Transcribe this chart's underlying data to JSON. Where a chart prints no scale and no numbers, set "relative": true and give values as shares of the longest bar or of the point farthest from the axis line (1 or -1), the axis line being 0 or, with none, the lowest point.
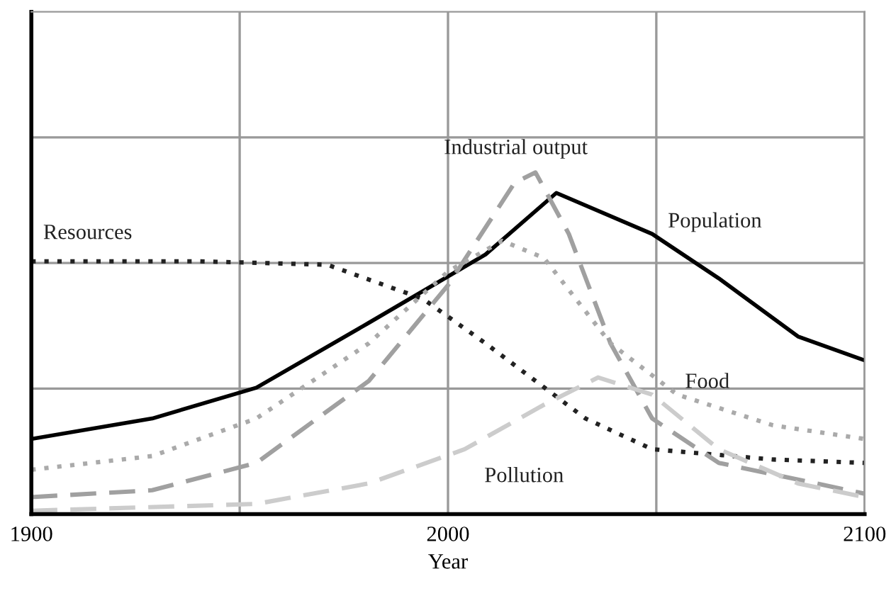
{
  "chart_data": {
    "type": "line",
    "relative": true,
    "xlabel": "Year",
    "xlim": [
      1900,
      2100
    ],
    "xticks": [
      1900,
      {
        "value": 1950,
        "label": null
      },
      2000,
      {
        "value": 2050,
        "label": null
      },
      2100
    ],
    "grid": true,
    "legend": false,
    "marker": "none",
    "series": [
      {
        "name": "Population",
        "color": "#000000",
        "line_style": "solid",
        "x": [
          1900,
          1929,
          1954,
          1981,
          2009,
          2026,
          2049,
          2065,
          2084,
          2100
        ],
        "values": [
          0.22,
          0.28,
          0.37,
          0.56,
          0.76,
          0.94,
          0.82,
          0.69,
          0.52,
          0.45
        ]
      },
      {
        "name": "Resources",
        "color": "#222222",
        "line_style": "dotted",
        "x": [
          1900,
          1940,
          1971,
          1994,
          2009,
          2033,
          2049,
          2078,
          2100
        ],
        "values": [
          0.74,
          0.74,
          0.73,
          0.63,
          0.5,
          0.28,
          0.19,
          0.16,
          0.15
        ]
      },
      {
        "name": "Industrial output",
        "color": "#a0a0a0",
        "line_style": "dashed",
        "x": [
          1900,
          1929,
          1954,
          1981,
          2000,
          2016,
          2021,
          2029,
          2039,
          2049,
          2065,
          2100
        ],
        "values": [
          0.05,
          0.07,
          0.15,
          0.39,
          0.67,
          0.97,
          1.0,
          0.82,
          0.5,
          0.28,
          0.15,
          0.06
        ]
      },
      {
        "name": "Food",
        "color": "#aaaaaa",
        "line_style": "dotted",
        "x": [
          1900,
          1929,
          1954,
          1981,
          2000,
          2013,
          2023,
          2039,
          2055,
          2078,
          2100
        ],
        "values": [
          0.13,
          0.17,
          0.28,
          0.5,
          0.71,
          0.8,
          0.75,
          0.5,
          0.35,
          0.26,
          0.22
        ]
      },
      {
        "name": "Pollution",
        "color": "#cccccc",
        "line_style": "dashed",
        "x": [
          1900,
          1954,
          1981,
          2004,
          2023,
          2036,
          2049,
          2065,
          2084,
          2100
        ],
        "values": [
          0.01,
          0.03,
          0.09,
          0.19,
          0.32,
          0.4,
          0.35,
          0.19,
          0.09,
          0.05
        ]
      }
    ]
  }
}
